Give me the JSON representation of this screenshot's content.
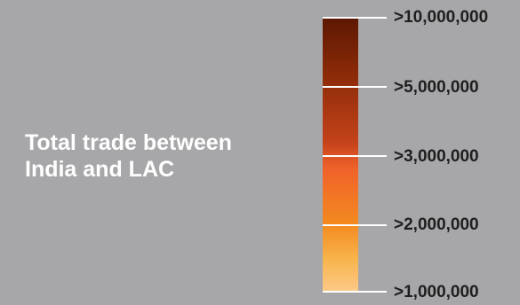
{
  "title": {
    "line1": "Total trade between",
    "line2": "India and LAC"
  },
  "legend": {
    "colors": {
      "top": "#5c1803",
      "mid_dark": "#c3421a",
      "mid": "#f0622a",
      "mid_light": "#f38a20",
      "bottom": "#fcca8a"
    },
    "ticks": [
      {
        "label": ">10,000,000"
      },
      {
        "label": ">5,000,000"
      },
      {
        "label": ">3,000,000"
      },
      {
        "label": ">2,000,000"
      },
      {
        "label": ">1,000,000"
      }
    ]
  }
}
